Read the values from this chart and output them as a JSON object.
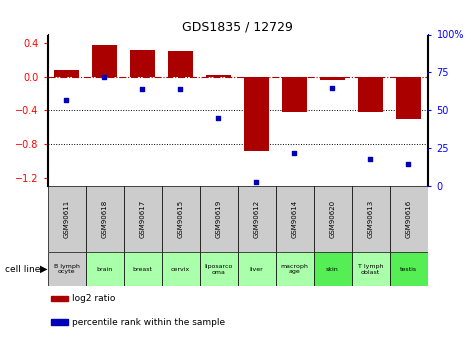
{
  "title": "GDS1835 / 12729",
  "gsm_labels": [
    "GSM90611",
    "GSM90618",
    "GSM90617",
    "GSM90615",
    "GSM90619",
    "GSM90612",
    "GSM90614",
    "GSM90620",
    "GSM90613",
    "GSM90616"
  ],
  "cell_labels": [
    "B lymph\nocyte",
    "brain",
    "breast",
    "cervix",
    "liposarco\noma",
    "liver",
    "macroph\nage",
    "skin",
    "T lymph\noblast",
    "testis"
  ],
  "cell_colors": [
    "#cccccc",
    "#aaffaa",
    "#aaffaa",
    "#aaffaa",
    "#aaffaa",
    "#aaffaa",
    "#aaffaa",
    "#55ee55",
    "#aaffaa",
    "#55ee55"
  ],
  "log2_ratio": [
    0.08,
    0.37,
    0.32,
    0.31,
    0.02,
    -0.88,
    -0.42,
    -0.04,
    -0.42,
    -0.5
  ],
  "percentile_rank": [
    57,
    72,
    64,
    64,
    45,
    3,
    22,
    65,
    18,
    15
  ],
  "bar_color": "#aa0000",
  "dot_color": "#0000bb",
  "ylim_left": [
    -1.3,
    0.5
  ],
  "ylim_right": [
    0,
    100
  ],
  "yticks_left": [
    -1.2,
    -0.8,
    -0.4,
    0.0,
    0.4
  ],
  "yticks_right": [
    0,
    25,
    50,
    75,
    100
  ],
  "yticklabels_right": [
    "0",
    "25",
    "50",
    "75",
    "100%"
  ],
  "ref_line_y": 0,
  "dotted_lines": [
    -0.4,
    -0.8
  ],
  "legend_items": [
    {
      "color": "#aa0000",
      "label": "log2 ratio"
    },
    {
      "color": "#0000bb",
      "label": "percentile rank within the sample"
    }
  ],
  "cell_line_label": "cell line",
  "arrow": "▶",
  "background_color": "#ffffff"
}
